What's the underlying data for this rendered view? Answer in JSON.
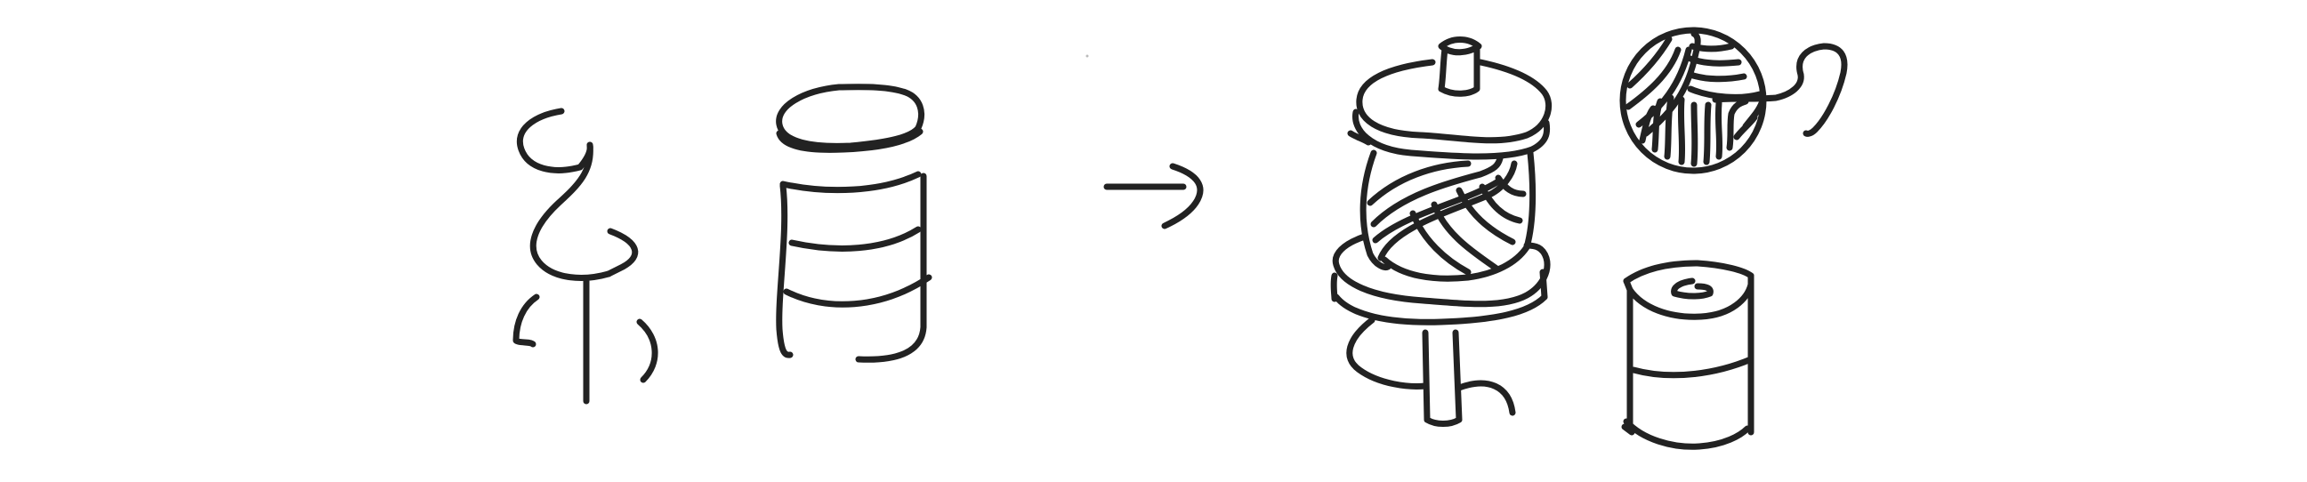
{
  "diagram": {
    "description_free": true,
    "panels": [
      {
        "id": "glyph-silk",
        "icon": "silk-radical-glyph-icon"
      },
      {
        "id": "glyph-moon",
        "icon": "moon-radical-glyph-icon"
      },
      {
        "id": "arrow",
        "icon": "right-arrow-icon"
      },
      {
        "id": "spool",
        "icon": "thread-spool-icon"
      },
      {
        "id": "yarn",
        "icon": "yarn-ball-icon"
      },
      {
        "id": "reel",
        "icon": "empty-reel-icon"
      }
    ],
    "colors": {
      "ink": "#222222",
      "background": "#ffffff"
    }
  }
}
